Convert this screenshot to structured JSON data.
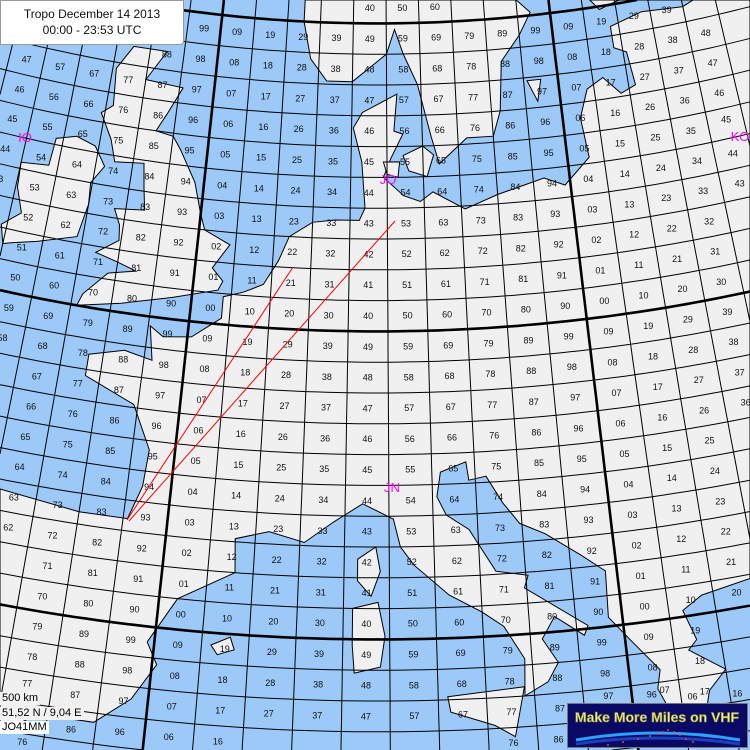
{
  "title": {
    "line1": "Tropo December 14 2013",
    "line2": "00:00 - 23:53 UTC"
  },
  "info": {
    "scale": "500 km",
    "coords": "51,52 N / 9,04 E",
    "locator": "JO41MM"
  },
  "logo": {
    "text": "Make More Miles on VHF"
  },
  "colors": {
    "sea": "#9cc9f7",
    "land": "#f0f0f0",
    "grid": "#000000",
    "path": "#ff0000",
    "field_label": "#ff00ff",
    "logo_bg": "#0a0a66",
    "logo_text": "#f4f08a"
  },
  "field_labels": [
    "IO",
    "JO",
    "KO",
    "JN"
  ],
  "grid": {
    "IO": [
      "99",
      "88",
      "98",
      "47",
      "57",
      "67",
      "77",
      "87",
      "97",
      "46",
      "56",
      "66",
      "76",
      "86",
      "96",
      "45",
      "55",
      "65",
      "75",
      "85",
      "95",
      "44",
      "54",
      "64",
      "74",
      "84",
      "94",
      "43",
      "53",
      "63",
      "73",
      "83",
      "93",
      "52",
      "62",
      "72",
      "82",
      "92",
      "51",
      "61",
      "71",
      "81",
      "91",
      "50",
      "60",
      "70",
      "80",
      "90"
    ],
    "JO": [
      "00",
      "10",
      "20",
      "30",
      "40",
      "50",
      "60",
      "70",
      "80",
      "90",
      "01",
      "11",
      "21",
      "31",
      "41",
      "51",
      "61",
      "71",
      "81",
      "91",
      "02",
      "12",
      "22",
      "32",
      "42",
      "52",
      "62",
      "72",
      "82",
      "92",
      "03",
      "13",
      "23",
      "33",
      "43",
      "53",
      "63",
      "73",
      "83",
      "93",
      "04",
      "14",
      "24",
      "34",
      "44",
      "54",
      "64",
      "74",
      "84",
      "94",
      "05",
      "15",
      "25",
      "35",
      "45",
      "55",
      "65",
      "75",
      "85",
      "95",
      "06",
      "16",
      "26",
      "36",
      "46",
      "56",
      "66",
      "76",
      "86",
      "96",
      "07",
      "17",
      "27",
      "37",
      "47",
      "57",
      "67",
      "77",
      "87",
      "97",
      "08",
      "18",
      "28",
      "38",
      "48",
      "58",
      "68",
      "78",
      "88",
      "98",
      "09",
      "19",
      "29",
      "39",
      "49",
      "59",
      "69",
      "79",
      "89",
      "99"
    ],
    "KO": [
      "09",
      "19",
      "29",
      "39",
      "08",
      "18",
      "28",
      "38",
      "48",
      "07",
      "17",
      "27",
      "37",
      "47",
      "06",
      "16",
      "26",
      "36",
      "46",
      "05",
      "15",
      "25",
      "35",
      "45",
      "04",
      "14",
      "24",
      "34",
      "44",
      "03",
      "13",
      "23",
      "33",
      "43",
      "02",
      "12",
      "22",
      "32",
      "01",
      "11",
      "21",
      "31",
      "00",
      "10",
      "20",
      "30"
    ],
    "JP": [
      "40",
      "50",
      "60"
    ],
    "IN": [
      "59",
      "69",
      "79",
      "89",
      "99",
      "58",
      "68",
      "78",
      "88",
      "98",
      "67",
      "77",
      "87",
      "97",
      "66",
      "76",
      "86",
      "96",
      "65",
      "75",
      "85",
      "95",
      "64",
      "74",
      "84",
      "94",
      "63",
      "73",
      "83",
      "93",
      "62",
      "72",
      "82",
      "92",
      "71",
      "81",
      "91",
      "70",
      "80",
      "90"
    ],
    "JN": [
      "00",
      "10",
      "20",
      "30",
      "40",
      "50",
      "60",
      "70",
      "80",
      "90",
      "01",
      "11",
      "21",
      "31",
      "41",
      "51",
      "61",
      "71",
      "81",
      "91",
      "02",
      "12",
      "22",
      "32",
      "42",
      "52",
      "62",
      "72",
      "82",
      "92",
      "03",
      "13",
      "23",
      "33",
      "43",
      "53",
      "63",
      "73",
      "83",
      "93",
      "04",
      "14",
      "24",
      "34",
      "44",
      "54",
      "64",
      "74",
      "84",
      "94",
      "05",
      "15",
      "25",
      "35",
      "45",
      "55",
      "65",
      "75",
      "85",
      "95",
      "06",
      "16",
      "26",
      "36",
      "46",
      "56",
      "66",
      "76",
      "86",
      "96",
      "07",
      "17",
      "27",
      "37",
      "47",
      "57",
      "67",
      "77",
      "87",
      "97",
      "08",
      "18",
      "28",
      "38",
      "48",
      "58",
      "68",
      "78",
      "88",
      "98",
      "09",
      "19",
      "29",
      "39",
      "49",
      "59",
      "69",
      "79",
      "89",
      "99"
    ],
    "KN": [
      "09",
      "19",
      "29",
      "39",
      "08",
      "18",
      "28",
      "38",
      "07",
      "17",
      "27",
      "37",
      "06",
      "16",
      "26",
      "36",
      "05",
      "15",
      "25",
      "04",
      "14",
      "24",
      "03",
      "13",
      "23",
      "02",
      "12",
      "22",
      "01",
      "11",
      "21",
      "00",
      "10",
      "20"
    ],
    "IM": [
      "79",
      "89",
      "99",
      "78",
      "88",
      "98",
      "77",
      "87",
      "97",
      "76",
      "86",
      "96"
    ],
    "JM": [
      "09",
      "19",
      "29",
      "39",
      "49",
      "59",
      "69",
      "79",
      "89",
      "99",
      "08",
      "18",
      "28",
      "38",
      "48",
      "58",
      "68",
      "78",
      "88",
      "98",
      "07",
      "17",
      "27",
      "37",
      "47",
      "57",
      "67",
      "77",
      "87",
      "97",
      "06",
      "16",
      "76",
      "86",
      "96"
    ],
    "KM": [
      "09",
      "19",
      "08",
      "18",
      "07",
      "17",
      "06",
      "16"
    ]
  }
}
